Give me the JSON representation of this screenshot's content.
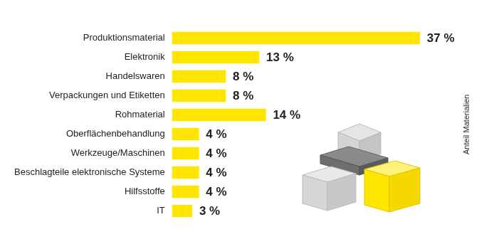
{
  "chart_data": {
    "type": "bar",
    "orientation": "horizontal",
    "annotation": "Anteil Materialien",
    "categories": [
      "Produktionsmaterial",
      "Elektronik",
      "Handelswaren",
      "Verpackungen und Etiketten",
      "Rohmaterial",
      "Oberflächenbehandlung",
      "Werkzeuge/Maschinen",
      "Beschlagteile elektronische Systeme",
      "Hilfsstoffe",
      "IT"
    ],
    "values": [
      37,
      13,
      8,
      8,
      14,
      4,
      4,
      4,
      4,
      3
    ],
    "value_labels": [
      "37 %",
      "13 %",
      "8 %",
      "8 %",
      "14 %",
      "4 %",
      "4 %",
      "4 %",
      "4 %",
      "3 %"
    ],
    "color": "#ffe600",
    "data_labels": true,
    "tick_labels": "y",
    "grid": false
  }
}
